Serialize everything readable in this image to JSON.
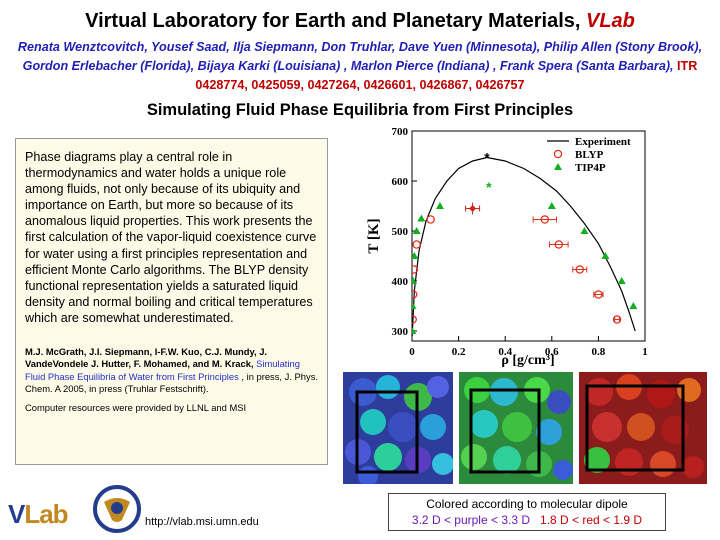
{
  "header": {
    "title": "Virtual Laboratory for Earth and Planetary Materials,",
    "title_emph": "VLab",
    "authors": "Renata Wenztcovitch, Yousef Saad, Ilja Siepmann, Don Truhlar, Dave Yuen (Minnesota), Philip Allen (Stony Brook), Gordon Erlebacher (Florida), Bijaya Karki (Louisiana) , Marlon Pierce (Indiana) , Frank Spera (Santa Barbara),",
    "itr": "ITR 0428774, 0425059, 0427264, 0426601, 0426867, 0426757"
  },
  "subtitle": "Simulating Fluid Phase Equilibria from First Principles",
  "abstract": "Phase diagrams play a central role in thermodynamics and water holds a unique role among fluids, not only because of its ubiquity and importance on Earth, but more so because of its anomalous liquid properties.  This work presents the first calculation of the vapor-liquid coexistence curve for water using a first principles representation and efficient Monte Carlo algorithms.  The BLYP density functional representation yields a saturated liquid density and normal boiling and critical temperatures which are somewhat underestimated.",
  "reference": {
    "authors": "M.J. McGrath, J.I. Siepmann, I-F.W. Kuo, C.J. Mundy, J. VandeVondele J. Hutter, F. Mohamed, and M. Krack,",
    "link": "Simulating Fluid Phase Equilibria of Water from First Principles",
    "rest": " , in press, J. Phys. Chem. A 2005, in press (Truhlar Festschrift)."
  },
  "computer_note": "Computer resources were provided by LLNL and MSI",
  "caption": {
    "line1": "Colored according to molecular dipole",
    "purple": "3.2 D < purple < 3.3 D",
    "red": "1.8 D < red < 1.9 D"
  },
  "footer": {
    "logo_v": "V",
    "logo_lab": "Lab",
    "url": "http://vlab.msi.umn.edu"
  },
  "chart_data": {
    "type": "scatter",
    "xlabel": "ρ  [g/cm³]",
    "ylabel": "T  [K]",
    "xlim": [
      0,
      1
    ],
    "ylim": [
      280,
      700
    ],
    "xticks": [
      0,
      0.2,
      0.4,
      0.6,
      0.8,
      1
    ],
    "yticks": [
      300,
      400,
      500,
      600,
      700
    ],
    "legend_position": "top-right",
    "series": [
      {
        "name": "Experiment",
        "kind": "line",
        "color": "#000000",
        "x": [
          0.001,
          0.01,
          0.03,
          0.06,
          0.1,
          0.15,
          0.2,
          0.26,
          0.322,
          0.4,
          0.48,
          0.55,
          0.62,
          0.68,
          0.74,
          0.8,
          0.85,
          0.9,
          0.93,
          0.958
        ],
        "y": [
          290,
          380,
          460,
          520,
          565,
          600,
          625,
          640,
          647,
          640,
          625,
          605,
          580,
          550,
          515,
          475,
          430,
          380,
          340,
          300
        ]
      },
      {
        "name": "BLYP",
        "kind": "circle",
        "color": "#e03020",
        "x": [
          0.003,
          0.005,
          0.008,
          0.02,
          0.08,
          0.57,
          0.63,
          0.72,
          0.8,
          0.88
        ],
        "y": [
          323,
          373,
          423,
          473,
          523,
          523,
          473,
          423,
          373,
          323
        ],
        "xerr": [
          0,
          0,
          0,
          0,
          0,
          0.05,
          0.04,
          0.03,
          0.02,
          0.01
        ]
      },
      {
        "name": "TIP4P",
        "kind": "triangle",
        "color": "#10b020",
        "x": [
          0.001,
          0.002,
          0.005,
          0.01,
          0.02,
          0.04,
          0.12,
          0.6,
          0.74,
          0.83,
          0.9,
          0.95
        ],
        "y": [
          300,
          350,
          400,
          450,
          500,
          525,
          550,
          550,
          500,
          450,
          400,
          350
        ]
      },
      {
        "name": "BLYP critical",
        "kind": "diamond",
        "color": "#d02020",
        "x": [
          0.26
        ],
        "y": [
          545
        ],
        "xerr": [
          0.03
        ],
        "yerr": [
          12
        ]
      },
      {
        "name": "Experiment critical",
        "kind": "star",
        "color": "#000000",
        "x": [
          0.322
        ],
        "y": [
          647
        ]
      },
      {
        "name": "TIP4P critical",
        "kind": "star",
        "color": "#10b020",
        "x": [
          0.33
        ],
        "y": [
          588
        ]
      }
    ]
  }
}
